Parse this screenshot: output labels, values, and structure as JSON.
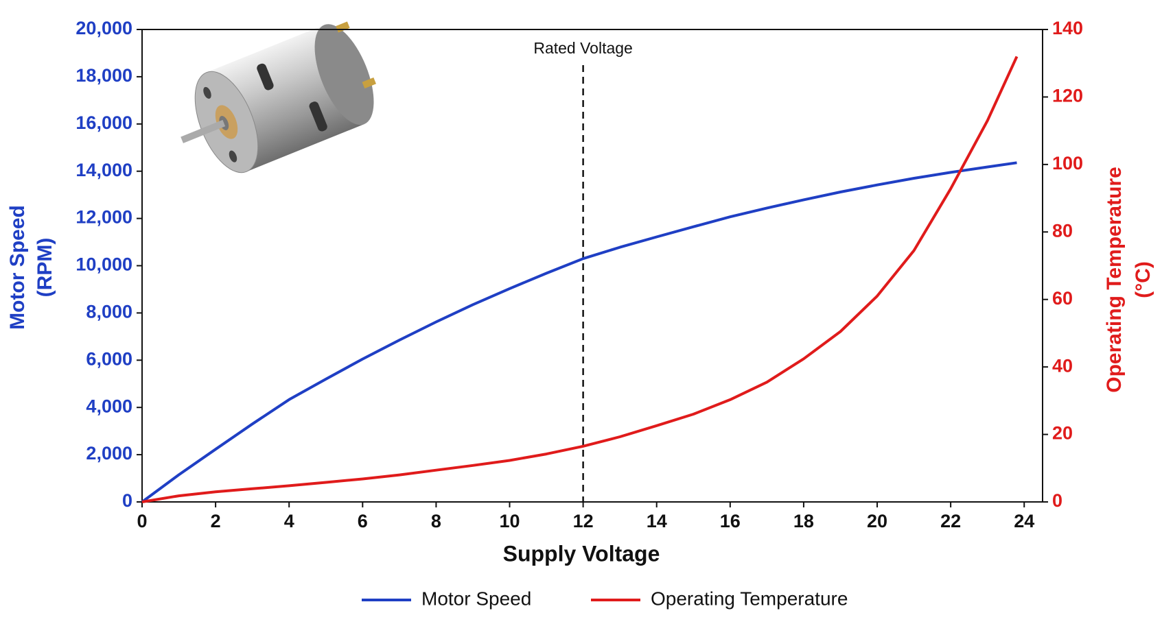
{
  "chart_data": {
    "type": "line",
    "xlabel": "Supply Voltage",
    "ylabel": [
      "Motor Speed",
      "(RPM)"
    ],
    "y2label": [
      "Operating Temperature",
      "(°C)"
    ],
    "x": [
      0,
      1,
      2,
      3,
      4,
      5,
      6,
      7,
      8,
      9,
      10,
      11,
      12,
      13,
      14,
      15,
      16,
      17,
      18,
      19,
      20,
      21,
      22,
      23,
      23.8
    ],
    "series": [
      {
        "name": "Motor Speed",
        "color": "#1f3fc4",
        "values": [
          0,
          1150,
          2230,
          3300,
          4330,
          5200,
          6050,
          6850,
          7620,
          8350,
          9030,
          9680,
          10300,
          10780,
          11220,
          11650,
          12070,
          12440,
          12790,
          13120,
          13420,
          13700,
          13950,
          14180,
          14360
        ]
      },
      {
        "name": "Operating Temperature",
        "color": "#e01b1b",
        "axis": "y2",
        "values": [
          0,
          1.8,
          3,
          3.9,
          4.8,
          5.8,
          6.8,
          8,
          9.4,
          10.8,
          12.3,
          14.2,
          16.5,
          19.3,
          22.6,
          26,
          30.3,
          35.5,
          42.4,
          50.5,
          61,
          74.5,
          92.8,
          113,
          132
        ]
      }
    ],
    "annotation": {
      "text": "Rated Voltage",
      "x": 12
    },
    "xlim": [
      0,
      24.5
    ],
    "xticks": [
      0,
      2,
      4,
      6,
      8,
      10,
      12,
      14,
      16,
      18,
      20,
      22,
      24
    ],
    "ylim": [
      0,
      20000
    ],
    "yticks": [
      0,
      {
        "value": 2000,
        "label": "2,000"
      },
      {
        "value": 4000,
        "label": "4,000"
      },
      {
        "value": 6000,
        "label": "6,000"
      },
      {
        "value": 8000,
        "label": "8,000"
      },
      {
        "value": 10000,
        "label": "10,000"
      },
      {
        "value": 12000,
        "label": "12,000"
      },
      {
        "value": 14000,
        "label": "14,000"
      },
      {
        "value": 16000,
        "label": "16,000"
      },
      {
        "value": 18000,
        "label": "18,000"
      },
      {
        "value": 20000,
        "label": "20,000"
      }
    ],
    "y2lim": [
      0,
      140
    ],
    "y2ticks": [
      0,
      20,
      40,
      60,
      80,
      100,
      120,
      140
    ],
    "y_color": "#1f3fc4",
    "y2_color": "#e01b1b",
    "legend": "bottom"
  }
}
